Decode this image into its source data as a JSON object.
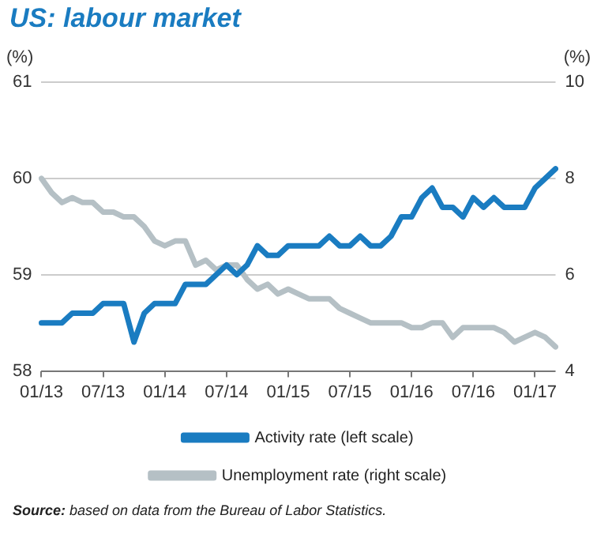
{
  "chart_data": {
    "type": "line",
    "title": "US: labour market",
    "ylabel": "(%)",
    "y2label": "(%)",
    "categories": [
      "01/13",
      null,
      null,
      null,
      null,
      null,
      "07/13",
      null,
      null,
      null,
      null,
      null,
      "01/14",
      null,
      null,
      null,
      null,
      null,
      "07/14",
      null,
      null,
      null,
      null,
      null,
      "01/15",
      null,
      null,
      null,
      null,
      null,
      "07/15",
      null,
      null,
      null,
      null,
      null,
      "01/16",
      null,
      null,
      null,
      null,
      null,
      "07/16",
      null,
      null,
      null,
      null,
      null,
      "01/17",
      null,
      null
    ],
    "series": [
      {
        "name": "Activity rate (left scale)",
        "color": "#1a7cc1",
        "values": [
          58.5,
          58.5,
          58.5,
          58.6,
          58.6,
          58.6,
          58.7,
          58.7,
          58.7,
          58.3,
          58.6,
          58.7,
          58.7,
          58.7,
          58.9,
          58.9,
          58.9,
          59.0,
          59.1,
          59.0,
          59.1,
          59.3,
          59.2,
          59.2,
          59.3,
          59.3,
          59.3,
          59.3,
          59.4,
          59.3,
          59.3,
          59.4,
          59.3,
          59.3,
          59.4,
          59.6,
          59.6,
          59.8,
          59.9,
          59.7,
          59.7,
          59.6,
          59.8,
          59.7,
          59.8,
          59.7,
          59.7,
          59.7,
          59.9,
          60.0,
          60.1
        ]
      },
      {
        "name": "Unemployment rate (right scale)",
        "color": "#b5c0c5",
        "axis": "y2",
        "values": [
          8.0,
          7.7,
          7.5,
          7.6,
          7.5,
          7.5,
          7.3,
          7.3,
          7.2,
          7.2,
          7.0,
          6.7,
          6.6,
          6.7,
          6.7,
          6.2,
          6.3,
          6.1,
          6.2,
          6.2,
          5.9,
          5.7,
          5.8,
          5.6,
          5.7,
          5.6,
          5.5,
          5.5,
          5.5,
          5.3,
          5.2,
          5.1,
          5.0,
          5.0,
          5.0,
          5.0,
          4.9,
          4.9,
          5.0,
          5.0,
          4.7,
          4.9,
          4.9,
          4.9,
          4.9,
          4.8,
          4.6,
          4.7,
          4.8,
          4.7,
          4.5
        ]
      }
    ],
    "ylim": [
      58,
      61
    ],
    "yticks": [
      58,
      59,
      60,
      61
    ],
    "y2lim": [
      4,
      10
    ],
    "y2ticks": [
      4,
      6,
      8,
      10
    ],
    "grid": "y",
    "legend": "bottom",
    "marker": "none",
    "line_style": "solid",
    "annotations": [
      "Source: based on data from the Bureau of Labor Statistics."
    ]
  }
}
